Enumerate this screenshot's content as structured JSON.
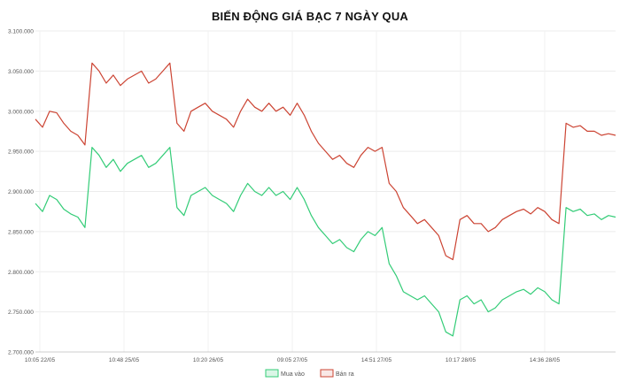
{
  "chart_data": {
    "type": "line",
    "title": "BIẾN ĐỘNG GIÁ BẠC 7 NGÀY QUA",
    "xlabel": "",
    "ylabel": "",
    "ylim": [
      2700000,
      3100000
    ],
    "grid": true,
    "legend_position": "bottom",
    "y_ticks": [
      2700000,
      2750000,
      2800000,
      2850000,
      2900000,
      2950000,
      3000000,
      3050000,
      3100000
    ],
    "y_tick_labels": [
      "2.700.000",
      "2.750.000",
      "2.800.000",
      "2.850.000",
      "2.900.000",
      "2.950.000",
      "3.000.000",
      "3.050.000",
      "3.100.000"
    ],
    "x_tick_labels": [
      "10:05 22/05",
      "10:48 25/05",
      "10:20 26/05",
      "09:05 27/05",
      "14:51 27/05",
      "10:17 28/05",
      "14:36 28/05"
    ],
    "series": [
      {
        "name": "Mua vào",
        "color": "#33cc77",
        "values": [
          2885000,
          2875000,
          2895000,
          2890000,
          2878000,
          2872000,
          2868000,
          2855000,
          2955000,
          2945000,
          2930000,
          2940000,
          2925000,
          2935000,
          2940000,
          2945000,
          2930000,
          2935000,
          2945000,
          2955000,
          2880000,
          2870000,
          2895000,
          2900000,
          2905000,
          2895000,
          2890000,
          2885000,
          2875000,
          2895000,
          2910000,
          2900000,
          2895000,
          2905000,
          2895000,
          2900000,
          2890000,
          2905000,
          2890000,
          2870000,
          2855000,
          2845000,
          2835000,
          2840000,
          2830000,
          2825000,
          2840000,
          2850000,
          2845000,
          2855000,
          2810000,
          2795000,
          2775000,
          2770000,
          2765000,
          2770000,
          2760000,
          2750000,
          2725000,
          2720000,
          2765000,
          2770000,
          2760000,
          2765000,
          2750000,
          2755000,
          2765000,
          2770000,
          2775000,
          2778000,
          2772000,
          2780000,
          2775000,
          2765000,
          2760000,
          2880000,
          2875000,
          2878000,
          2870000,
          2872000,
          2865000,
          2870000,
          2868000
        ]
      },
      {
        "name": "Bán ra",
        "color": "#cc4433",
        "values": [
          2990000,
          2980000,
          3000000,
          2998000,
          2985000,
          2975000,
          2970000,
          2958000,
          3060000,
          3050000,
          3035000,
          3045000,
          3032000,
          3040000,
          3045000,
          3050000,
          3035000,
          3040000,
          3050000,
          3060000,
          2985000,
          2975000,
          3000000,
          3005000,
          3010000,
          3000000,
          2995000,
          2990000,
          2980000,
          3000000,
          3015000,
          3005000,
          3000000,
          3010000,
          3000000,
          3005000,
          2995000,
          3010000,
          2995000,
          2975000,
          2960000,
          2950000,
          2940000,
          2945000,
          2935000,
          2930000,
          2945000,
          2955000,
          2950000,
          2955000,
          2910000,
          2900000,
          2880000,
          2870000,
          2860000,
          2865000,
          2855000,
          2845000,
          2820000,
          2815000,
          2865000,
          2870000,
          2860000,
          2860000,
          2850000,
          2855000,
          2865000,
          2870000,
          2875000,
          2878000,
          2872000,
          2880000,
          2875000,
          2865000,
          2860000,
          2985000,
          2980000,
          2982000,
          2975000,
          2975000,
          2970000,
          2972000,
          2970000
        ]
      }
    ]
  }
}
